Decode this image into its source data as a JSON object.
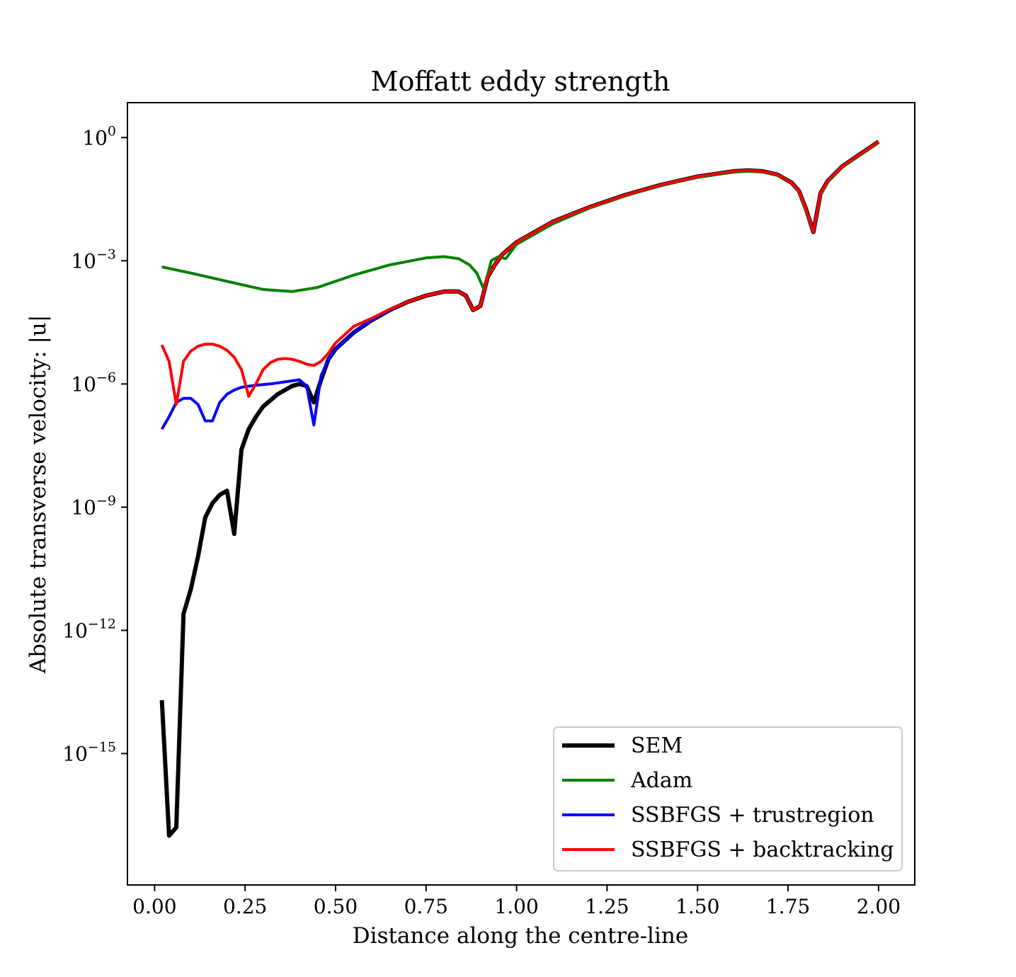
{
  "chart_data": {
    "type": "line",
    "title": "Moffatt eddy strength",
    "xlabel": "Distance along the centre-line",
    "ylabel": "Absolute transverse velocity: |u|",
    "xlim": [
      -0.075,
      2.1
    ],
    "ylim_log10": [
      -18.2,
      0.85
    ],
    "yscale": "log",
    "x_ticks": [
      0.0,
      0.25,
      0.5,
      0.75,
      1.0,
      1.25,
      1.5,
      1.75,
      2.0
    ],
    "x_tick_labels": [
      "0.00",
      "0.25",
      "0.50",
      "0.75",
      "1.00",
      "1.25",
      "1.50",
      "1.75",
      "2.00"
    ],
    "y_ticks": [
      {
        "base": "10",
        "exp": "0",
        "log": 0
      },
      {
        "base": "10",
        "exp": "−3",
        "log": -3
      },
      {
        "base": "10",
        "exp": "−6",
        "log": -6
      },
      {
        "base": "10",
        "exp": "−9",
        "log": -9
      },
      {
        "base": "10",
        "exp": "−12",
        "log": -12
      },
      {
        "base": "10",
        "exp": "−15",
        "log": -15
      }
    ],
    "legend_position": "lower-right",
    "series": [
      {
        "name": "SEM",
        "color": "#000000",
        "x": [
          0.02,
          0.04,
          0.06,
          0.08,
          0.1,
          0.12,
          0.14,
          0.16,
          0.18,
          0.2,
          0.22,
          0.24,
          0.26,
          0.28,
          0.3,
          0.32,
          0.34,
          0.36,
          0.38,
          0.4,
          0.42,
          0.44,
          0.46,
          0.48,
          0.5,
          0.55,
          0.6,
          0.65,
          0.7,
          0.75,
          0.8,
          0.84,
          0.86,
          0.88,
          0.9,
          0.92,
          0.94,
          0.96,
          1.0,
          1.1,
          1.2,
          1.3,
          1.4,
          1.5,
          1.6,
          1.64,
          1.68,
          1.72,
          1.76,
          1.78,
          1.8,
          1.82,
          1.84,
          1.86,
          1.9,
          1.95,
          2.0
        ],
        "log10_y": [
          -13.7,
          -17.0,
          -16.8,
          -11.6,
          -11.0,
          -10.2,
          -9.25,
          -8.9,
          -8.7,
          -8.6,
          -9.65,
          -7.6,
          -7.1,
          -6.8,
          -6.55,
          -6.4,
          -6.25,
          -6.15,
          -6.05,
          -6.0,
          -6.05,
          -6.45,
          -5.9,
          -5.4,
          -5.15,
          -4.75,
          -4.45,
          -4.2,
          -4.0,
          -3.85,
          -3.75,
          -3.75,
          -3.85,
          -4.2,
          -4.1,
          -3.4,
          -3.1,
          -2.85,
          -2.55,
          -2.05,
          -1.7,
          -1.4,
          -1.15,
          -0.95,
          -0.82,
          -0.8,
          -0.82,
          -0.9,
          -1.1,
          -1.3,
          -1.75,
          -2.3,
          -1.35,
          -1.05,
          -0.7,
          -0.4,
          -0.1
        ]
      },
      {
        "name": "Adam",
        "color": "#008000",
        "x": [
          0.02,
          0.1,
          0.2,
          0.3,
          0.38,
          0.45,
          0.55,
          0.65,
          0.75,
          0.8,
          0.84,
          0.87,
          0.89,
          0.91,
          0.93,
          0.95,
          0.97,
          1.0,
          1.1,
          1.2,
          1.3,
          1.4,
          1.5,
          1.6,
          1.64,
          1.68,
          1.72,
          1.76,
          1.78,
          1.8,
          1.82,
          1.84,
          1.86,
          1.9,
          1.95,
          2.0
        ],
        "log10_y": [
          -3.15,
          -3.3,
          -3.5,
          -3.7,
          -3.75,
          -3.65,
          -3.35,
          -3.1,
          -2.93,
          -2.9,
          -2.95,
          -3.1,
          -3.3,
          -3.7,
          -3.0,
          -2.9,
          -2.95,
          -2.6,
          -2.1,
          -1.72,
          -1.42,
          -1.16,
          -0.97,
          -0.84,
          -0.82,
          -0.84,
          -0.92,
          -1.1,
          -1.32,
          -1.8,
          -2.3,
          -1.4,
          -1.08,
          -0.72,
          -0.42,
          -0.12
        ]
      },
      {
        "name": "SSBFGS + trustregion",
        "color": "#0000ff",
        "x": [
          0.02,
          0.04,
          0.06,
          0.08,
          0.1,
          0.12,
          0.14,
          0.16,
          0.18,
          0.2,
          0.22,
          0.24,
          0.28,
          0.32,
          0.36,
          0.4,
          0.42,
          0.44,
          0.46,
          0.48,
          0.5,
          0.55,
          0.6,
          0.65,
          0.7,
          0.75,
          0.8,
          0.84,
          0.86,
          0.88,
          0.9,
          0.92,
          0.94,
          0.96,
          1.0,
          1.1,
          1.2,
          1.3,
          1.4,
          1.5,
          1.6,
          1.64,
          1.68,
          1.72,
          1.76,
          1.78,
          1.8,
          1.82,
          1.84,
          1.86,
          1.9,
          1.95,
          2.0
        ],
        "log10_y": [
          -7.1,
          -6.8,
          -6.45,
          -6.35,
          -6.35,
          -6.5,
          -6.9,
          -6.9,
          -6.45,
          -6.25,
          -6.15,
          -6.08,
          -6.03,
          -6.0,
          -5.95,
          -5.9,
          -6.05,
          -7.0,
          -5.8,
          -5.4,
          -5.15,
          -4.75,
          -4.45,
          -4.2,
          -4.0,
          -3.85,
          -3.75,
          -3.75,
          -3.85,
          -4.2,
          -4.1,
          -3.4,
          -3.1,
          -2.85,
          -2.55,
          -2.05,
          -1.7,
          -1.4,
          -1.15,
          -0.95,
          -0.82,
          -0.8,
          -0.82,
          -0.9,
          -1.1,
          -1.3,
          -1.75,
          -2.3,
          -1.35,
          -1.05,
          -0.7,
          -0.4,
          -0.1
        ]
      },
      {
        "name": "SSBFGS + backtracking",
        "color": "#ff0000",
        "x": [
          0.02,
          0.04,
          0.06,
          0.08,
          0.1,
          0.12,
          0.14,
          0.16,
          0.18,
          0.2,
          0.22,
          0.24,
          0.26,
          0.28,
          0.3,
          0.32,
          0.34,
          0.36,
          0.38,
          0.4,
          0.42,
          0.44,
          0.46,
          0.48,
          0.5,
          0.55,
          0.6,
          0.65,
          0.7,
          0.75,
          0.8,
          0.84,
          0.86,
          0.88,
          0.9,
          0.92,
          0.94,
          0.96,
          1.0,
          1.1,
          1.2,
          1.3,
          1.4,
          1.5,
          1.6,
          1.64,
          1.68,
          1.72,
          1.76,
          1.78,
          1.8,
          1.82,
          1.84,
          1.86,
          1.9,
          1.95,
          2.0
        ],
        "log10_y": [
          -5.05,
          -5.45,
          -6.5,
          -5.45,
          -5.2,
          -5.08,
          -5.03,
          -5.03,
          -5.08,
          -5.18,
          -5.35,
          -5.65,
          -6.3,
          -6.0,
          -5.65,
          -5.48,
          -5.4,
          -5.38,
          -5.4,
          -5.45,
          -5.52,
          -5.55,
          -5.45,
          -5.25,
          -5.0,
          -4.6,
          -4.4,
          -4.18,
          -4.0,
          -3.85,
          -3.75,
          -3.75,
          -3.85,
          -4.2,
          -4.1,
          -3.4,
          -3.1,
          -2.85,
          -2.55,
          -2.05,
          -1.7,
          -1.4,
          -1.15,
          -0.95,
          -0.82,
          -0.8,
          -0.82,
          -0.9,
          -1.1,
          -1.3,
          -1.75,
          -2.3,
          -1.35,
          -1.05,
          -0.7,
          -0.4,
          -0.1
        ]
      }
    ]
  }
}
